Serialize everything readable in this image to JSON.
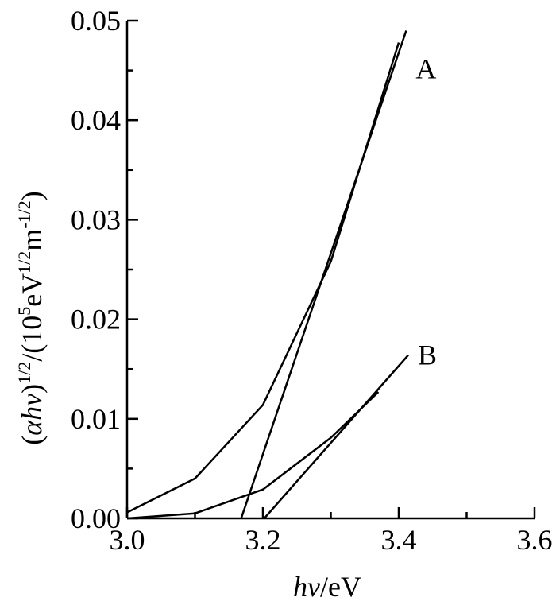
{
  "chart_data": {
    "type": "line",
    "xlabel": {
      "italic": "hv",
      "rest": "/eV"
    },
    "ylabel": {
      "open": "(",
      "italic": "αhv",
      "close": ")",
      "sup1": "1/2",
      "mid": "/(10",
      "sup2": "5",
      "unit1": "eV",
      "sup3": "1/2",
      "unit2": "m",
      "sup4": "-1/2",
      "end": ")"
    },
    "xlim": [
      3.0,
      3.6
    ],
    "ylim": [
      0.0,
      0.05
    ],
    "x_ticks": [
      3.0,
      3.2,
      3.4,
      3.6
    ],
    "x_tick_labels": [
      "3.0",
      "3.2",
      "3.4",
      "3.6"
    ],
    "y_ticks": [
      0.0,
      0.01,
      0.02,
      0.03,
      0.04,
      0.05
    ],
    "y_tick_labels": [
      "0.00",
      "0.01",
      "0.02",
      "0.03",
      "0.04",
      "0.05"
    ],
    "grid": false,
    "series": [
      {
        "name": "A",
        "x": [
          3.0,
          3.1,
          3.2,
          3.3,
          3.4
        ],
        "y": [
          0.0006,
          0.004,
          0.0114,
          0.0258,
          0.0478
        ]
      },
      {
        "name": "B",
        "x": [
          3.0,
          3.1,
          3.2,
          3.3,
          3.37
        ],
        "y": [
          0.0,
          0.0005,
          0.0029,
          0.0081,
          0.0127
        ]
      }
    ],
    "fits": [
      {
        "series": "A",
        "x": [
          3.168,
          3.411
        ],
        "y": [
          0.0,
          0.049
        ]
      },
      {
        "series": "B",
        "x": [
          3.202,
          3.414
        ],
        "y": [
          0.0,
          0.0164
        ]
      }
    ]
  }
}
